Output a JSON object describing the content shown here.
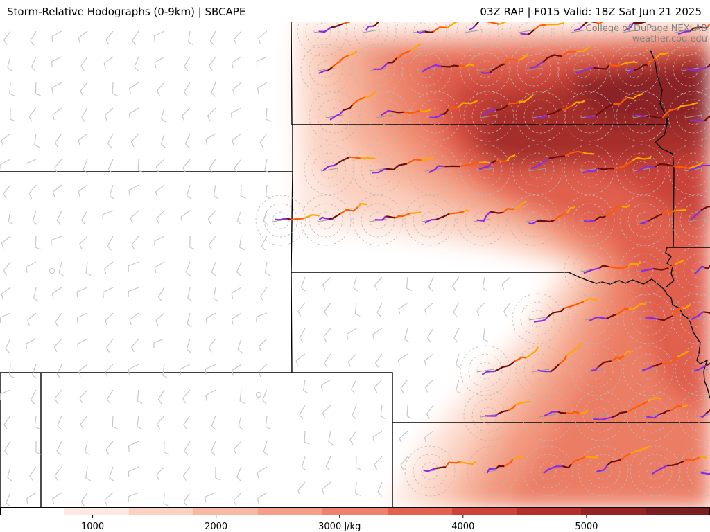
{
  "header": {
    "title_left": "Storm-Relative Hodographs (0-9km) | SBCAPE",
    "title_right": "03Z RAP | F015 Valid: 18Z Sat Jun 21 2025"
  },
  "credit": {
    "line1": "College of DuPage NEXLAB",
    "line2": "weather.cod.edu"
  },
  "colorbar": {
    "unit_label": "3000 J/kg",
    "ticks": [
      {
        "value": 1000,
        "label": "1000"
      },
      {
        "value": 2000,
        "label": "2000"
      },
      {
        "value": 3000,
        "label": "3000 J/kg"
      },
      {
        "value": 4000,
        "label": "4000"
      },
      {
        "value": 5000,
        "label": "5000"
      }
    ],
    "range": [
      250,
      6000
    ],
    "colors": [
      "#ffffff",
      "#fde9e1",
      "#fbd2c2",
      "#f8b9a4",
      "#f59e88",
      "#ef826d",
      "#e3614f",
      "#cf4237",
      "#b52f2a",
      "#962323",
      "#7a1e22"
    ]
  },
  "colors": {
    "border": "#000000",
    "barb": "#c8c8c8",
    "hodo_low": "#6a0d0d",
    "hodo_mid": "#ff5a00",
    "hodo_high": "#ffa500",
    "hodo_top": "#8a2be2",
    "credit_text": "#7f7f7f"
  }
}
